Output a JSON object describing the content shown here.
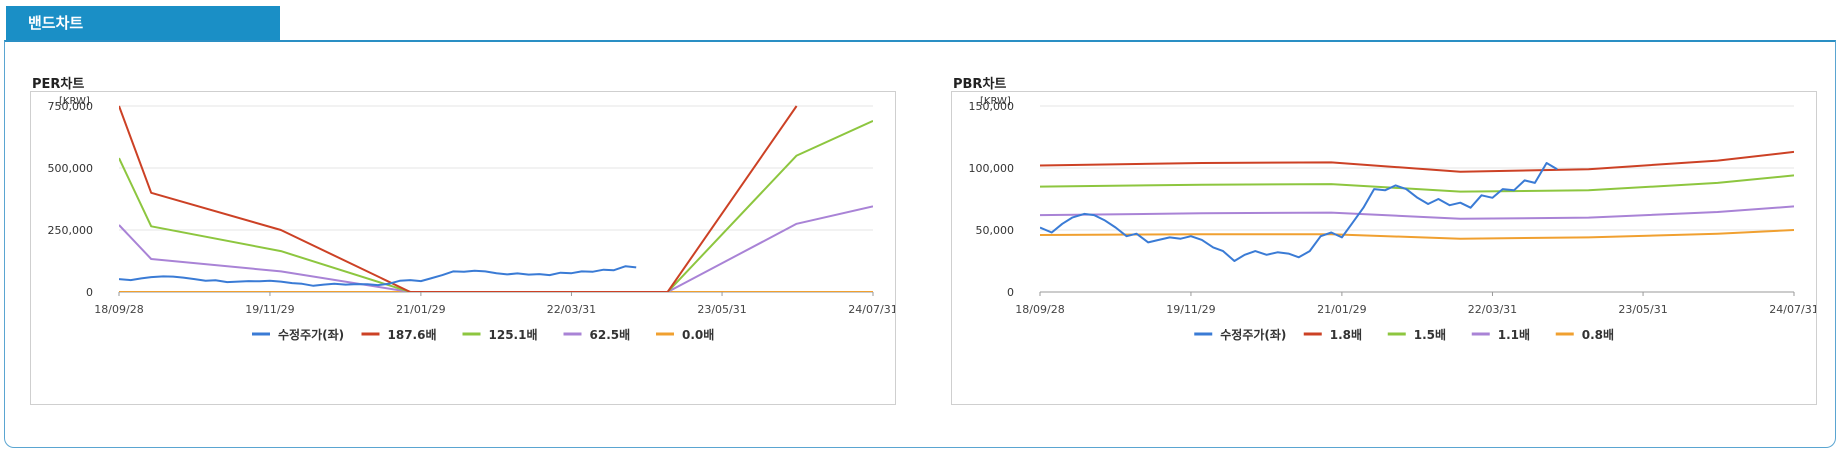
{
  "section_tab": "밴드차트",
  "chart_data": [
    {
      "type": "line",
      "title": "PER차트",
      "unit_label": "[KRW]",
      "x_ticks": [
        "18/09/28",
        "19/11/29",
        "21/01/29",
        "22/03/31",
        "23/05/31",
        "24/07/31"
      ],
      "x_range": [
        "2018-09-28",
        "2024-07-31"
      ],
      "ylim": [
        0,
        750000
      ],
      "y_ticks": [
        0,
        250000,
        500000,
        750000
      ],
      "y_tick_labels": [
        "0",
        "250,000",
        "500,000",
        "750,000"
      ],
      "grid": true,
      "legend_position": "bottom",
      "series": [
        {
          "name": "수정주가(좌)",
          "color": "#3a7bd5",
          "points": [
            [
              "2018-09-28",
              52000
            ],
            [
              "2018-10-31",
              48000
            ],
            [
              "2018-11-30",
              55000
            ],
            [
              "2018-12-28",
              60000
            ],
            [
              "2019-01-31",
              63000
            ],
            [
              "2019-02-28",
              62000
            ],
            [
              "2019-03-29",
              58000
            ],
            [
              "2019-04-30",
              52000
            ],
            [
              "2019-05-31",
              45000
            ],
            [
              "2019-06-28",
              47000
            ],
            [
              "2019-07-31",
              40000
            ],
            [
              "2019-08-30",
              42000
            ],
            [
              "2019-09-30",
              44000
            ],
            [
              "2019-10-31",
              43000
            ],
            [
              "2019-11-29",
              45000
            ],
            [
              "2019-12-30",
              42000
            ],
            [
              "2020-01-31",
              36000
            ],
            [
              "2020-02-28",
              33000
            ],
            [
              "2020-03-31",
              25000
            ],
            [
              "2020-04-29",
              30000
            ],
            [
              "2020-05-29",
              33000
            ],
            [
              "2020-06-30",
              30000
            ],
            [
              "2020-07-31",
              32000
            ],
            [
              "2020-08-31",
              31000
            ],
            [
              "2020-09-29",
              28000
            ],
            [
              "2020-10-30",
              33000
            ],
            [
              "2020-11-30",
              45000
            ],
            [
              "2020-12-30",
              48000
            ],
            [
              "2021-01-29",
              44000
            ],
            [
              "2021-02-26",
              55000
            ],
            [
              "2021-03-31",
              68000
            ],
            [
              "2021-04-30",
              83000
            ],
            [
              "2021-05-31",
              82000
            ],
            [
              "2021-06-30",
              86000
            ],
            [
              "2021-07-30",
              83000
            ],
            [
              "2021-08-31",
              76000
            ],
            [
              "2021-09-30",
              71000
            ],
            [
              "2021-10-29",
              75000
            ],
            [
              "2021-11-30",
              70000
            ],
            [
              "2021-12-30",
              72000
            ],
            [
              "2022-01-28",
              68000
            ],
            [
              "2022-02-28",
              78000
            ],
            [
              "2022-03-31",
              76000
            ],
            [
              "2022-04-29",
              83000
            ],
            [
              "2022-05-31",
              82000
            ],
            [
              "2022-06-30",
              90000
            ],
            [
              "2022-07-29",
              88000
            ],
            [
              "2022-08-31",
              104000
            ],
            [
              "2022-09-30",
              99000
            ]
          ]
        },
        {
          "name": "187.6배",
          "color": "#cc4125",
          "points": [
            [
              "2018-09-28",
              750000
            ],
            [
              "2018-12-28",
              400000
            ],
            [
              "2019-12-30",
              250000
            ],
            [
              "2020-12-30",
              0
            ],
            [
              "2022-12-28",
              0
            ],
            [
              "2023-12-28",
              750000
            ]
          ]
        },
        {
          "name": "125.1배",
          "color": "#8dc63f",
          "points": [
            [
              "2018-09-28",
              540000
            ],
            [
              "2018-12-28",
              265000
            ],
            [
              "2019-12-30",
              165000
            ],
            [
              "2020-12-30",
              0
            ],
            [
              "2022-12-28",
              0
            ],
            [
              "2023-12-28",
              550000
            ],
            [
              "2024-07-31",
              690000
            ]
          ]
        },
        {
          "name": "62.5배",
          "color": "#a983d6",
          "points": [
            [
              "2018-09-28",
              270000
            ],
            [
              "2018-12-28",
              133000
            ],
            [
              "2019-12-30",
              83000
            ],
            [
              "2020-12-30",
              0
            ],
            [
              "2022-12-28",
              0
            ],
            [
              "2023-12-28",
              275000
            ],
            [
              "2024-07-31",
              345000
            ]
          ]
        },
        {
          "name": "0.0배",
          "color": "#f0a030",
          "points": [
            [
              "2018-09-28",
              0
            ],
            [
              "2024-07-31",
              0
            ]
          ]
        }
      ]
    },
    {
      "type": "line",
      "title": "PBR차트",
      "unit_label": "[KRW]",
      "x_ticks": [
        "18/09/28",
        "19/11/29",
        "21/01/29",
        "22/03/31",
        "23/05/31",
        "24/07/31"
      ],
      "x_range": [
        "2018-09-28",
        "2024-07-31"
      ],
      "ylim": [
        0,
        150000
      ],
      "y_ticks": [
        0,
        50000,
        100000,
        150000
      ],
      "y_tick_labels": [
        "0",
        "50,000",
        "100,000",
        "150,000"
      ],
      "grid": true,
      "legend_position": "bottom",
      "series": [
        {
          "name": "수정주가(좌)",
          "color": "#3a7bd5",
          "points": [
            [
              "2018-09-28",
              52000
            ],
            [
              "2018-10-31",
              48000
            ],
            [
              "2018-11-30",
              55000
            ],
            [
              "2018-12-28",
              60000
            ],
            [
              "2019-01-31",
              63000
            ],
            [
              "2019-02-28",
              62000
            ],
            [
              "2019-03-29",
              58000
            ],
            [
              "2019-04-30",
              52000
            ],
            [
              "2019-05-31",
              45000
            ],
            [
              "2019-06-28",
              47000
            ],
            [
              "2019-07-31",
              40000
            ],
            [
              "2019-08-30",
              42000
            ],
            [
              "2019-09-30",
              44000
            ],
            [
              "2019-10-31",
              43000
            ],
            [
              "2019-11-29",
              45000
            ],
            [
              "2019-12-30",
              42000
            ],
            [
              "2020-01-31",
              36000
            ],
            [
              "2020-02-28",
              33000
            ],
            [
              "2020-03-31",
              25000
            ],
            [
              "2020-04-29",
              30000
            ],
            [
              "2020-05-29",
              33000
            ],
            [
              "2020-06-30",
              30000
            ],
            [
              "2020-07-31",
              32000
            ],
            [
              "2020-08-31",
              31000
            ],
            [
              "2020-09-29",
              28000
            ],
            [
              "2020-10-30",
              33000
            ],
            [
              "2020-11-30",
              45000
            ],
            [
              "2020-12-30",
              48000
            ],
            [
              "2021-01-29",
              44000
            ],
            [
              "2021-02-26",
              55000
            ],
            [
              "2021-03-31",
              68000
            ],
            [
              "2021-04-30",
              83000
            ],
            [
              "2021-05-31",
              82000
            ],
            [
              "2021-06-30",
              86000
            ],
            [
              "2021-07-30",
              83000
            ],
            [
              "2021-08-31",
              76000
            ],
            [
              "2021-09-30",
              71000
            ],
            [
              "2021-10-29",
              75000
            ],
            [
              "2021-11-30",
              70000
            ],
            [
              "2021-12-30",
              72000
            ],
            [
              "2022-01-28",
              68000
            ],
            [
              "2022-02-28",
              78000
            ],
            [
              "2022-03-31",
              76000
            ],
            [
              "2022-04-29",
              83000
            ],
            [
              "2022-05-31",
              82000
            ],
            [
              "2022-06-30",
              90000
            ],
            [
              "2022-07-29",
              88000
            ],
            [
              "2022-08-31",
              104000
            ],
            [
              "2022-09-30",
              99000
            ]
          ]
        },
        {
          "name": "1.8배",
          "color": "#cc4125",
          "points": [
            [
              "2018-09-28",
              102000
            ],
            [
              "2019-12-30",
              104000
            ],
            [
              "2020-12-30",
              104500
            ],
            [
              "2021-12-30",
              97000
            ],
            [
              "2022-12-28",
              99000
            ],
            [
              "2023-12-28",
              106000
            ],
            [
              "2024-07-31",
              113000
            ]
          ]
        },
        {
          "name": "1.5배",
          "color": "#8dc63f",
          "points": [
            [
              "2018-09-28",
              85000
            ],
            [
              "2019-12-30",
              86500
            ],
            [
              "2020-12-30",
              87000
            ],
            [
              "2021-12-30",
              81000
            ],
            [
              "2022-12-28",
              82000
            ],
            [
              "2023-12-28",
              88000
            ],
            [
              "2024-07-31",
              94000
            ]
          ]
        },
        {
          "name": "1.1배",
          "color": "#a983d6",
          "points": [
            [
              "2018-09-28",
              62000
            ],
            [
              "2019-12-30",
              63500
            ],
            [
              "2020-12-30",
              64000
            ],
            [
              "2021-12-30",
              59000
            ],
            [
              "2022-12-28",
              60000
            ],
            [
              "2023-12-28",
              64500
            ],
            [
              "2024-07-31",
              69000
            ]
          ]
        },
        {
          "name": "0.8배",
          "color": "#f0a030",
          "points": [
            [
              "2018-09-28",
              46000
            ],
            [
              "2019-12-30",
              46500
            ],
            [
              "2020-12-30",
              46500
            ],
            [
              "2021-12-30",
              43000
            ],
            [
              "2022-12-28",
              44000
            ],
            [
              "2023-12-28",
              47000
            ],
            [
              "2024-07-31",
              50000
            ]
          ]
        }
      ]
    }
  ]
}
